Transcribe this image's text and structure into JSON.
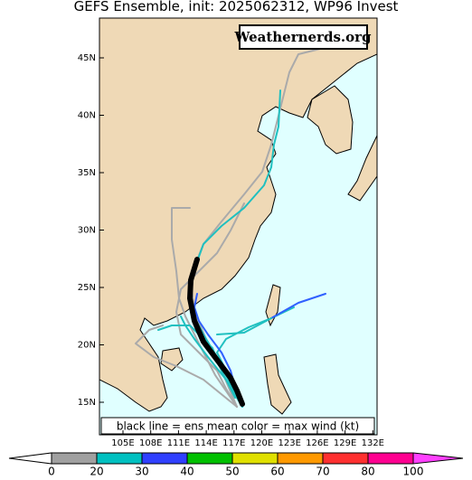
{
  "title": "GEFS Ensemble, init: 2025062312, WP96 Invest",
  "watermark": "Weathernerds.org",
  "note": "black line = ens mean color = max wind (kt)",
  "lat_labels": [
    "45N",
    "40N",
    "35N",
    "30N",
    "25N",
    "20N",
    "15N"
  ],
  "lon_labels": [
    "105E",
    "108E",
    "111E",
    "114E",
    "117E",
    "120E",
    "123E",
    "126E",
    "129E",
    "132E"
  ],
  "colorbar_labels": [
    "0",
    "20",
    "30",
    "40",
    "50",
    "60",
    "70",
    "80",
    "100"
  ]
}
